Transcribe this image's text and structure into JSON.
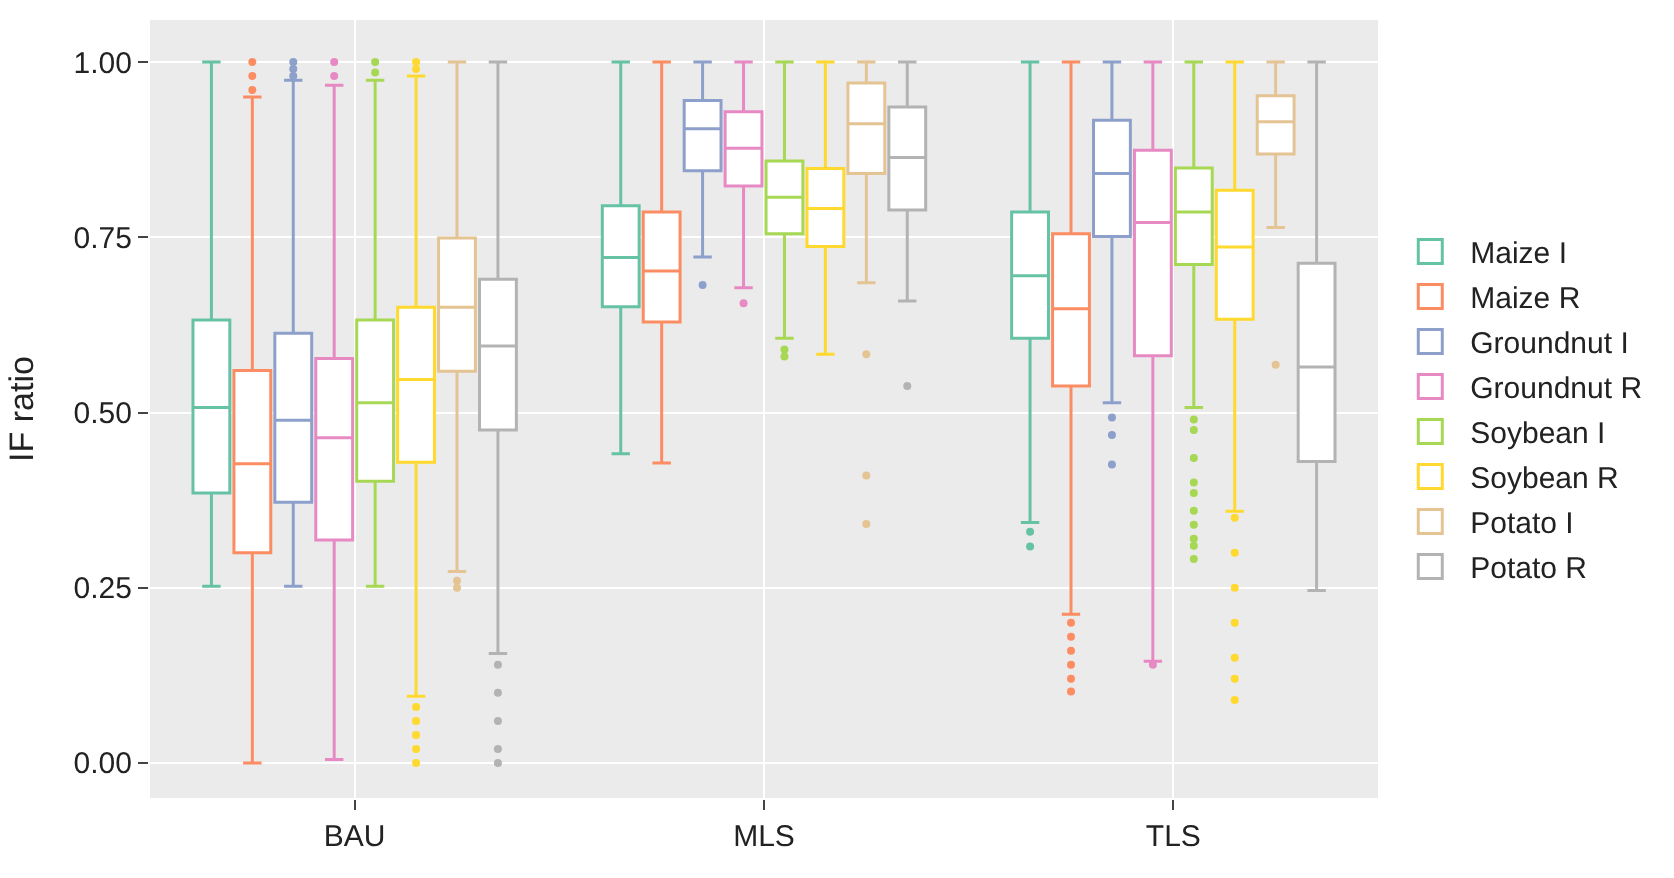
{
  "chart_data": {
    "type": "box",
    "ylabel": "IF ratio",
    "categories": [
      "BAU",
      "MLS",
      "TLS"
    ],
    "ylim": [
      -0.05,
      1.06
    ],
    "yticks": [
      {
        "value": 0,
        "label": "0.00"
      },
      {
        "value": 0.25,
        "label": "0.25"
      },
      {
        "value": 0.5,
        "label": "0.50"
      },
      {
        "value": 0.75,
        "label": "0.75"
      },
      {
        "value": 1,
        "label": "1.00"
      }
    ],
    "grid": true,
    "legend": "right",
    "series": [
      {
        "name": "Maize I",
        "color": "#66c2a5",
        "boxes": [
          {
            "low": 0.252,
            "q1": 0.385,
            "median": 0.507,
            "q3": 0.632,
            "high": 1.0
          },
          {
            "low": 0.441,
            "q1": 0.651,
            "median": 0.721,
            "q3": 0.795,
            "high": 1.0
          },
          {
            "low": 0.343,
            "q1": 0.606,
            "median": 0.695,
            "q3": 0.786,
            "high": 1.0,
            "outliers": [
              0.33,
              0.309
            ]
          }
        ]
      },
      {
        "name": "Maize R",
        "color": "#fc8d62",
        "boxes": [
          {
            "low": 0.0,
            "q1": 0.3,
            "median": 0.427,
            "q3": 0.56,
            "high": 0.95,
            "outliers": [
              0.96,
              0.98,
              1.0
            ]
          },
          {
            "low": 0.428,
            "q1": 0.629,
            "median": 0.702,
            "q3": 0.786,
            "high": 1.0
          },
          {
            "low": 0.212,
            "q1": 0.538,
            "median": 0.648,
            "q3": 0.755,
            "high": 1.0,
            "outliers": [
              0.2,
              0.18,
              0.16,
              0.14,
              0.12,
              0.102
            ]
          }
        ]
      },
      {
        "name": "Groundnut I",
        "color": "#8da0cb",
        "boxes": [
          {
            "low": 0.252,
            "q1": 0.372,
            "median": 0.489,
            "q3": 0.613,
            "high": 0.974,
            "outliers": [
              0.98,
              0.99,
              1.0
            ]
          },
          {
            "low": 0.722,
            "q1": 0.845,
            "median": 0.905,
            "q3": 0.945,
            "high": 1.0,
            "outliers": [
              0.682
            ]
          },
          {
            "low": 0.514,
            "q1": 0.751,
            "median": 0.841,
            "q3": 0.917,
            "high": 1.0,
            "outliers": [
              0.493,
              0.468,
              0.426
            ]
          }
        ]
      },
      {
        "name": "Groundnut R",
        "color": "#e78ac3",
        "boxes": [
          {
            "low": 0.005,
            "q1": 0.318,
            "median": 0.464,
            "q3": 0.577,
            "high": 0.967,
            "outliers": [
              0.98,
              1.0
            ]
          },
          {
            "low": 0.678,
            "q1": 0.823,
            "median": 0.877,
            "q3": 0.929,
            "high": 1.0,
            "outliers": [
              0.656
            ]
          },
          {
            "low": 0.145,
            "q1": 0.581,
            "median": 0.771,
            "q3": 0.874,
            "high": 1.0,
            "outliers": [
              0.14
            ]
          }
        ]
      },
      {
        "name": "Soybean I",
        "color": "#a6d854",
        "boxes": [
          {
            "low": 0.252,
            "q1": 0.402,
            "median": 0.514,
            "q3": 0.632,
            "high": 0.974,
            "outliers": [
              0.985,
              1.0
            ]
          },
          {
            "low": 0.606,
            "q1": 0.755,
            "median": 0.807,
            "q3": 0.859,
            "high": 1.0,
            "outliers": [
              0.59,
              0.58
            ]
          },
          {
            "low": 0.507,
            "q1": 0.711,
            "median": 0.786,
            "q3": 0.849,
            "high": 1.0,
            "outliers": [
              0.49,
              0.475,
              0.435,
              0.4,
              0.385,
              0.36,
              0.34,
              0.32,
              0.31,
              0.291
            ]
          }
        ]
      },
      {
        "name": "Soybean R",
        "color": "#ffd92f",
        "boxes": [
          {
            "low": 0.095,
            "q1": 0.429,
            "median": 0.547,
            "q3": 0.65,
            "high": 0.98,
            "outliers": [
              0.08,
              0.06,
              0.04,
              0.02,
              0.0,
              0.99,
              1.0
            ]
          },
          {
            "low": 0.583,
            "q1": 0.737,
            "median": 0.791,
            "q3": 0.848,
            "high": 1.0
          },
          {
            "low": 0.359,
            "q1": 0.633,
            "median": 0.736,
            "q3": 0.817,
            "high": 1.0,
            "outliers": [
              0.35,
              0.3,
              0.25,
              0.2,
              0.15,
              0.12,
              0.09
            ]
          }
        ]
      },
      {
        "name": "Potato I",
        "color": "#e5c494",
        "boxes": [
          {
            "low": 0.273,
            "q1": 0.559,
            "median": 0.65,
            "q3": 0.749,
            "high": 1.0,
            "outliers": [
              0.26,
              0.25
            ]
          },
          {
            "low": 0.685,
            "q1": 0.841,
            "median": 0.912,
            "q3": 0.97,
            "high": 1.0,
            "outliers": [
              0.583,
              0.41,
              0.341
            ]
          },
          {
            "low": 0.764,
            "q1": 0.869,
            "median": 0.915,
            "q3": 0.952,
            "high": 1.0,
            "outliers": [
              0.568
            ]
          }
        ]
      },
      {
        "name": "Potato R",
        "color": "#b3b3b3",
        "boxes": [
          {
            "low": 0.156,
            "q1": 0.475,
            "median": 0.595,
            "q3": 0.69,
            "high": 1.0,
            "outliers": [
              0.14,
              0.1,
              0.06,
              0.02,
              0.0
            ]
          },
          {
            "low": 0.659,
            "q1": 0.789,
            "median": 0.864,
            "q3": 0.936,
            "high": 1.0,
            "outliers": [
              0.538
            ]
          },
          {
            "low": 0.246,
            "q1": 0.43,
            "median": 0.565,
            "q3": 0.713,
            "high": 1.0
          }
        ]
      }
    ]
  }
}
